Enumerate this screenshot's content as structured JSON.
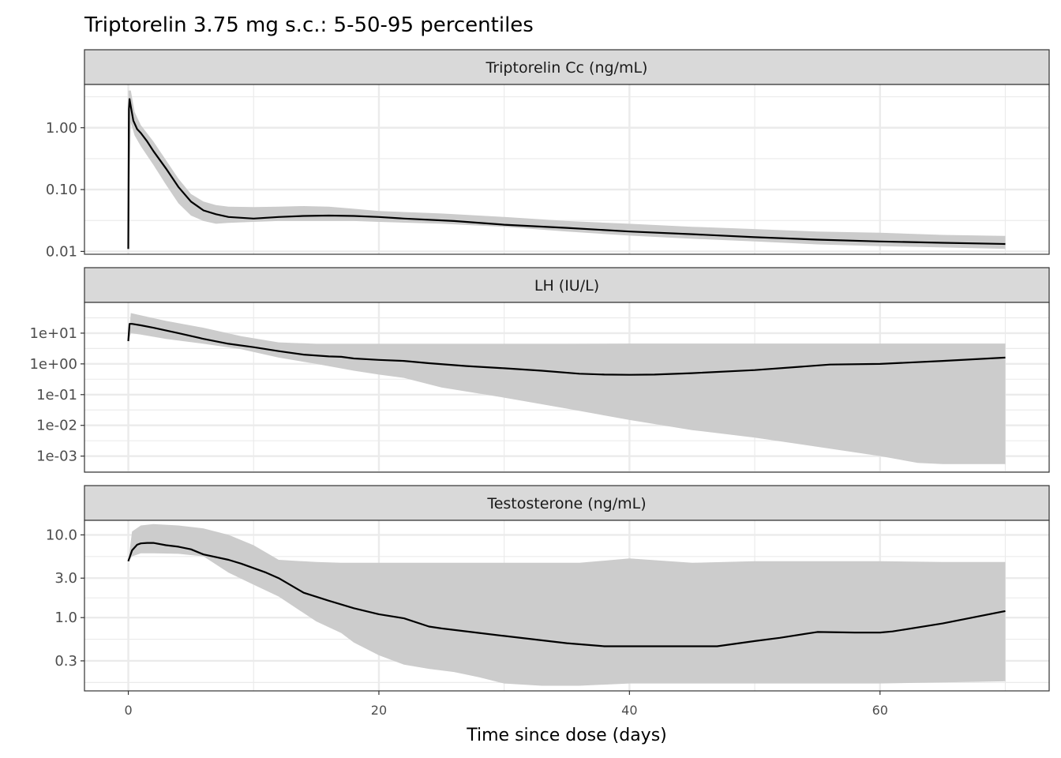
{
  "chart_data": {
    "type": "line",
    "title": "Triptorelin 3.75 mg s.c.: 5-50-95 percentiles",
    "xlabel": "Time since dose (days)",
    "xlim": [
      -3.5,
      73.5
    ],
    "xticks": [
      0,
      20,
      40,
      60
    ],
    "xtick_labels": [
      "0",
      "20",
      "40",
      "60"
    ],
    "grid": true,
    "colors": {
      "median": "#000000",
      "band": "#cccccc",
      "strip": "#d9d9d9",
      "grid": "#ebebeb"
    },
    "panels": [
      {
        "strip_label": "Triptorelin Cc (ng/mL)",
        "y_scale": "log10",
        "ylim": [
          0.009,
          5
        ],
        "yticks": [
          0.01,
          0.1,
          1
        ],
        "ytick_labels": [
          "0.01",
          "0.10",
          "1.00"
        ],
        "series": [
          {
            "role": "median",
            "x": [
              0,
              0.05,
              0.1,
              0.2,
              0.4,
              0.7,
              1,
              1.5,
              2,
              3,
              4,
              5,
              6,
              7,
              8,
              10,
              12,
              14,
              16,
              18,
              20,
              22,
              26,
              30,
              35,
              40,
              45,
              50,
              55,
              60,
              65,
              70
            ],
            "y": [
              0.011,
              2.0,
              2.9,
              2.2,
              1.3,
              0.95,
              0.82,
              0.6,
              0.42,
              0.22,
              0.11,
              0.064,
              0.046,
              0.04,
              0.036,
              0.034,
              0.036,
              0.0375,
              0.038,
              0.0375,
              0.036,
              0.034,
              0.031,
              0.027,
              0.024,
              0.021,
              0.019,
              0.017,
              0.0155,
              0.0145,
              0.0138,
              0.0132
            ]
          },
          {
            "role": "p05-p95 band",
            "x": [
              0,
              0.2,
              0.5,
              1,
              2,
              3,
              4,
              5,
              6,
              7,
              8,
              10,
              12,
              14,
              16,
              18,
              20,
              25,
              30,
              35,
              40,
              45,
              50,
              55,
              60,
              65,
              70
            ],
            "lower": [
              0.011,
              1.2,
              0.75,
              0.5,
              0.25,
              0.12,
              0.06,
              0.038,
              0.031,
              0.028,
              0.029,
              0.03,
              0.031,
              0.031,
              0.031,
              0.031,
              0.03,
              0.028,
              0.025,
              0.021,
              0.018,
              0.016,
              0.0145,
              0.013,
              0.0122,
              0.0116,
              0.011
            ],
            "upper": [
              4.0,
              4.0,
              1.8,
              1.1,
              0.6,
              0.3,
              0.15,
              0.085,
              0.064,
              0.056,
              0.053,
              0.052,
              0.053,
              0.054,
              0.053,
              0.049,
              0.045,
              0.041,
              0.036,
              0.031,
              0.028,
              0.025,
              0.023,
              0.021,
              0.02,
              0.0185,
              0.0178
            ]
          }
        ]
      },
      {
        "strip_label": "LH (IU/L)",
        "y_scale": "log10",
        "ylim": [
          0.0003,
          100
        ],
        "yticks": [
          0.001,
          0.01,
          0.1,
          1,
          10
        ],
        "ytick_labels": [
          "1e-03",
          "1e-02",
          "1e-01",
          "1e+00",
          "1e+01"
        ],
        "series": [
          {
            "role": "median",
            "x": [
              0,
              0.1,
              0.3,
              1,
              2,
              4,
              6,
              8,
              10,
              12,
              14,
              16,
              17,
              18,
              20,
              22,
              24,
              27,
              30,
              33,
              36,
              38,
              40,
              42,
              45,
              50,
              56,
              60,
              65,
              70
            ],
            "y": [
              5.5,
              20,
              20,
              18,
              15,
              10,
              6.5,
              4.5,
              3.5,
              2.6,
              2.0,
              1.75,
              1.7,
              1.5,
              1.35,
              1.25,
              1.05,
              0.85,
              0.72,
              0.6,
              0.48,
              0.45,
              0.44,
              0.45,
              0.5,
              0.63,
              0.95,
              1.0,
              1.25,
              1.6
            ]
          },
          {
            "role": "p05-p95 band",
            "x": [
              0,
              0.2,
              1,
              3,
              6,
              9,
              12,
              15,
              18,
              20,
              22,
              25,
              30,
              35,
              40,
              45,
              50,
              55,
              60,
              63,
              65,
              70
            ],
            "lower": [
              5,
              10,
              9,
              6.5,
              4.5,
              3.0,
              1.6,
              1.0,
              0.6,
              0.45,
              0.35,
              0.17,
              0.08,
              0.035,
              0.015,
              0.007,
              0.004,
              0.002,
              0.001,
              0.0006,
              0.00055,
              0.00055
            ],
            "upper": [
              5,
              45,
              38,
              25,
              15,
              8,
              5,
              4.5,
              4.5,
              4.5,
              4.5,
              4.5,
              4.5,
              4.5,
              4.6,
              4.6,
              4.6,
              4.6,
              4.6,
              4.6,
              4.6,
              4.6
            ]
          }
        ]
      },
      {
        "strip_label": "Testosterone (ng/mL)",
        "y_scale": "log10",
        "ylim": [
          0.13,
          15
        ],
        "yticks": [
          0.3,
          1,
          3,
          10
        ],
        "ytick_labels": [
          "0.3",
          "1.0",
          "3.0",
          "10.0"
        ],
        "series": [
          {
            "role": "median",
            "x": [
              0,
              0.3,
              0.7,
              1,
              1.5,
              2,
              3,
              4,
              5,
              6,
              8,
              9,
              11,
              12,
              14,
              16,
              18,
              20,
              22,
              24,
              25,
              30,
              35,
              38,
              40,
              47,
              50,
              52,
              55,
              58,
              60,
              61,
              65,
              70
            ],
            "y": [
              4.8,
              6.5,
              7.6,
              7.9,
              8.0,
              8.0,
              7.5,
              7.2,
              6.7,
              5.8,
              5.0,
              4.5,
              3.5,
              3.0,
              2.0,
              1.6,
              1.3,
              1.1,
              0.98,
              0.78,
              0.74,
              0.6,
              0.49,
              0.45,
              0.45,
              0.45,
              0.52,
              0.57,
              0.67,
              0.66,
              0.66,
              0.68,
              0.85,
              1.2
            ]
          },
          {
            "role": "p05-p95 band",
            "x": [
              0,
              0.3,
              1,
              2,
              4,
              6,
              8,
              10,
              12,
              15,
              17,
              18,
              20,
              22,
              24,
              26,
              28,
              30,
              33,
              36,
              40,
              45,
              50,
              55,
              60,
              65,
              70
            ],
            "lower": [
              4.8,
              5.5,
              6.0,
              6.0,
              5.9,
              5.5,
              3.5,
              2.5,
              1.8,
              0.9,
              0.65,
              0.5,
              0.35,
              0.27,
              0.24,
              0.22,
              0.19,
              0.16,
              0.15,
              0.15,
              0.16,
              0.16,
              0.16,
              0.16,
              0.16,
              0.165,
              0.17
            ],
            "upper": [
              4.8,
              11,
              13,
              13.5,
              13,
              12,
              10,
              7.5,
              5.0,
              4.7,
              4.6,
              4.6,
              4.6,
              4.6,
              4.6,
              4.6,
              4.6,
              4.6,
              4.6,
              4.6,
              5.2,
              4.6,
              4.8,
              4.8,
              4.8,
              4.7,
              4.7
            ]
          }
        ]
      }
    ]
  }
}
